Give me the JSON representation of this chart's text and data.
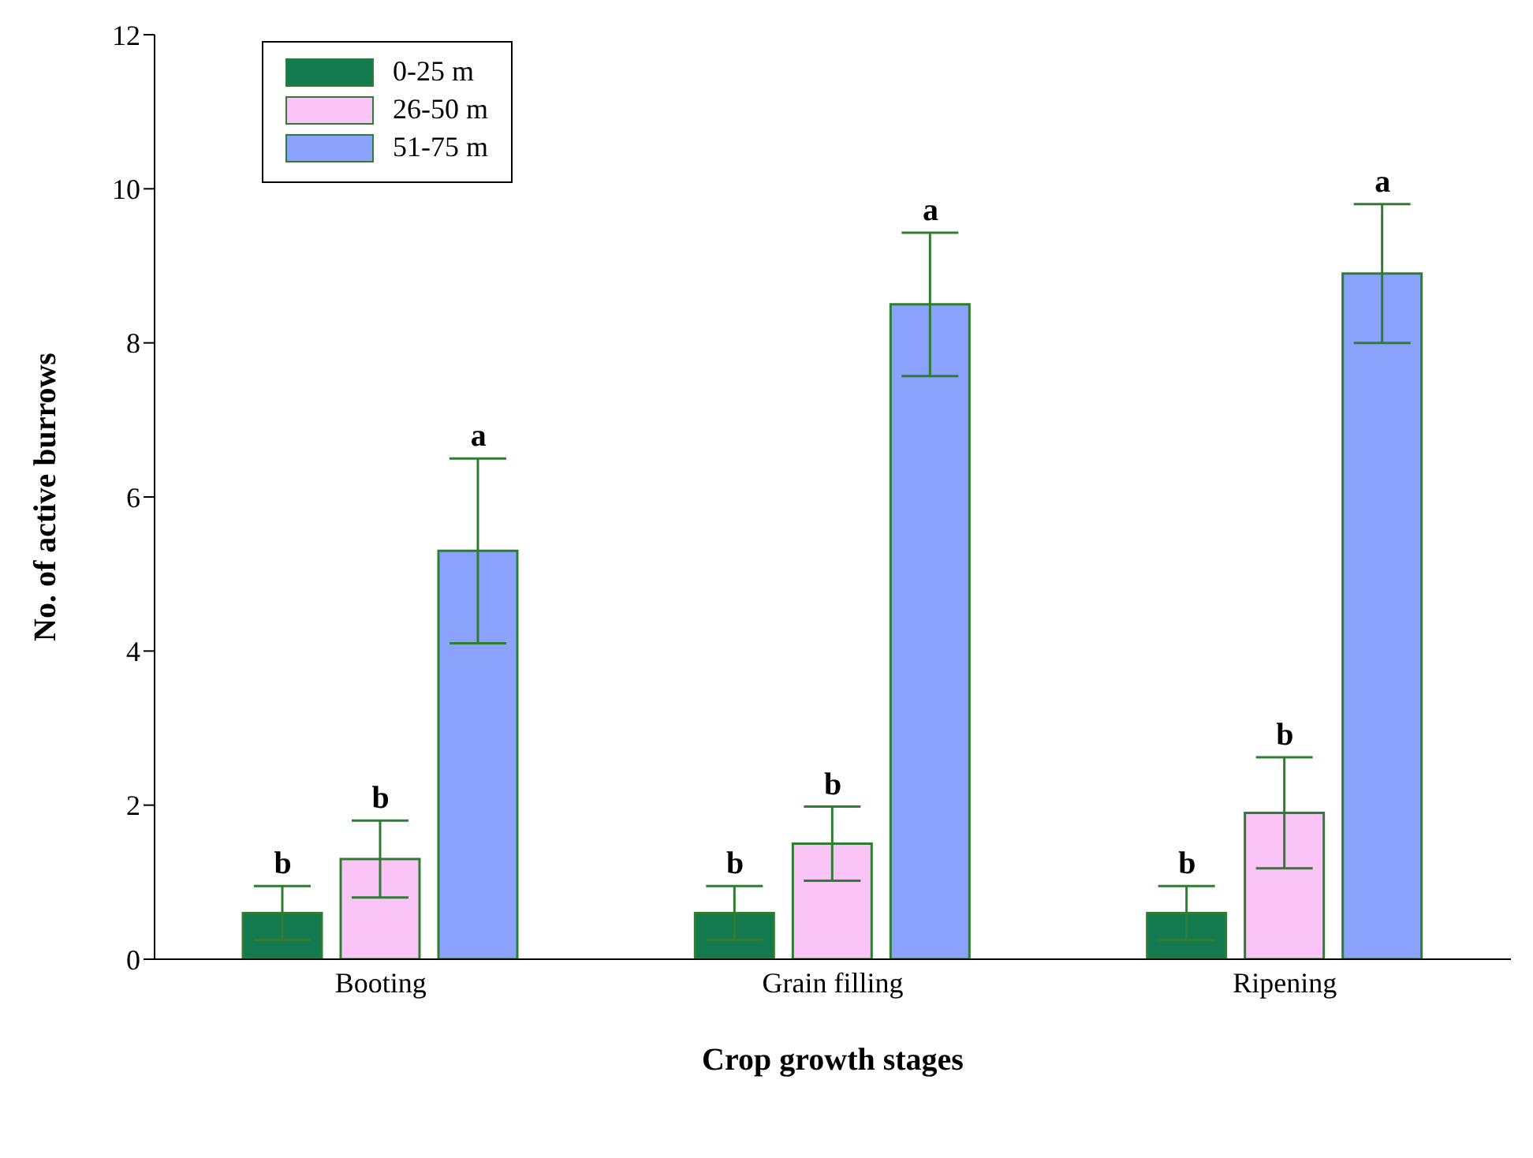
{
  "chart_data": {
    "type": "bar",
    "xlabel": "Crop growth stages",
    "ylabel": "No. of active burrows",
    "categories": [
      "Booting",
      "Grain filling",
      "Ripening"
    ],
    "series": [
      {
        "name": "0-25 m",
        "color": "#127a4e",
        "values": [
          0.6,
          0.6,
          0.6
        ],
        "errors": [
          0.35,
          0.35,
          0.35
        ]
      },
      {
        "name": "26-50 m",
        "color": "#fbc4f7",
        "values": [
          1.3,
          1.5,
          1.9
        ],
        "errors": [
          0.5,
          0.48,
          0.72
        ]
      },
      {
        "name": "51-75 m",
        "color": "#8aa2fb",
        "values": [
          5.3,
          8.5,
          8.9
        ],
        "errors": [
          1.2,
          0.93,
          0.9
        ]
      }
    ],
    "ylim": [
      0,
      12
    ],
    "yticks": [
      0,
      2,
      4,
      6,
      8,
      10,
      12
    ],
    "grid": false,
    "legend": "top left",
    "annotations": [
      "b",
      "b",
      "a",
      "b",
      "b",
      "a",
      "b",
      "b",
      "a"
    ]
  }
}
